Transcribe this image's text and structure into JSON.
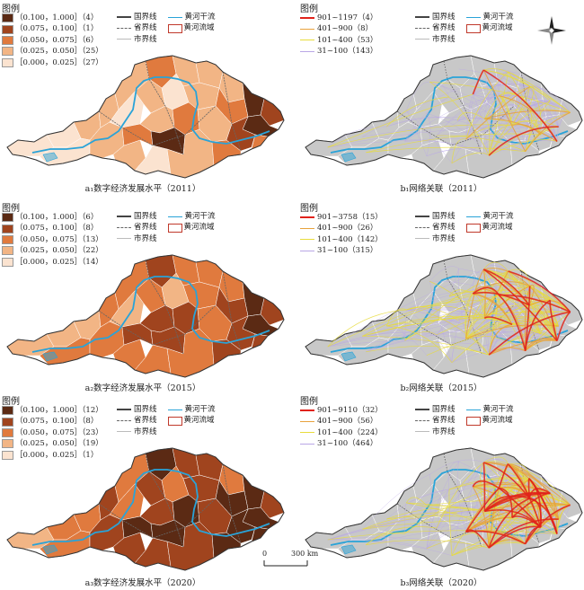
{
  "legend_title": "图例",
  "boundary_legend": {
    "national": "国界线",
    "provincial": "省界线",
    "city": "市界线",
    "river": "黄河干流",
    "basin": "黄河流域"
  },
  "colors": {
    "class5": "#5b2a14",
    "class4": "#a0441e",
    "class3": "#e07a3e",
    "class2": "#f2b585",
    "class1": "#fbe3d0",
    "river": "#29a3d8",
    "basin_line": "#c0392b",
    "base_gray": "#c8c8c8",
    "link_red": "#e0221a",
    "link_orange": "#e8a23c",
    "link_yellow": "#e8dc3c",
    "link_purple": "#b9a7e6"
  },
  "panels": [
    {
      "id": "a1",
      "caption": "a₁数字经济发展水平（2011）",
      "kind": "level",
      "classes": [
        {
          "label": "（0.100，1.000］（4）",
          "color": "#5b2a14",
          "count": 4
        },
        {
          "label": "（0.075，0.100］（1）",
          "color": "#a0441e",
          "count": 1
        },
        {
          "label": "（0.050，0.075］（6）",
          "color": "#e07a3e",
          "count": 6
        },
        {
          "label": "（0.025，0.050］（25）",
          "color": "#f2b585",
          "count": 25
        },
        {
          "label": "［0.000，0.025］（27）",
          "color": "#fbe3d0",
          "count": 27
        }
      ]
    },
    {
      "id": "b1",
      "caption": "b₁网络关联（2011）",
      "kind": "network",
      "links": [
        {
          "label": "901~1197（4）",
          "color": "#e0221a",
          "count": 4
        },
        {
          "label": "401~900（8）",
          "color": "#e8a23c",
          "count": 8
        },
        {
          "label": "101~400（53）",
          "color": "#e8dc3c",
          "count": 53
        },
        {
          "label": "31~100（143）",
          "color": "#b9a7e6",
          "count": 143
        }
      ]
    },
    {
      "id": "a2",
      "caption": "a₂数字经济发展水平（2015）",
      "kind": "level",
      "classes": [
        {
          "label": "（0.100，1.000］（6）",
          "color": "#5b2a14",
          "count": 6
        },
        {
          "label": "（0.075，0.100］（8）",
          "color": "#a0441e",
          "count": 8
        },
        {
          "label": "（0.050，0.075］（13）",
          "color": "#e07a3e",
          "count": 13
        },
        {
          "label": "（0.025，0.050］（22）",
          "color": "#f2b585",
          "count": 22
        },
        {
          "label": "［0.000，0.025］（14）",
          "color": "#fbe3d0",
          "count": 14
        }
      ]
    },
    {
      "id": "b2",
      "caption": "b₂网络关联（2015）",
      "kind": "network",
      "links": [
        {
          "label": "901~3758（15）",
          "color": "#e0221a",
          "count": 15
        },
        {
          "label": "401~900（26）",
          "color": "#e8a23c",
          "count": 26
        },
        {
          "label": "101~400（142）",
          "color": "#e8dc3c",
          "count": 142
        },
        {
          "label": "31~100（315）",
          "color": "#b9a7e6",
          "count": 315
        }
      ]
    },
    {
      "id": "a3",
      "caption": "a₃数字经济发展水平（2020）",
      "kind": "level",
      "classes": [
        {
          "label": "（0.100，1.000］（12）",
          "color": "#5b2a14",
          "count": 12
        },
        {
          "label": "（0.075，0.100］（8）",
          "color": "#a0441e",
          "count": 8
        },
        {
          "label": "（0.050，0.075］（23）",
          "color": "#e07a3e",
          "count": 23
        },
        {
          "label": "（0.025，0.050］（19）",
          "color": "#f2b585",
          "count": 19
        },
        {
          "label": "［0.000，0.025］（1）",
          "color": "#fbe3d0",
          "count": 1
        }
      ]
    },
    {
      "id": "b3",
      "caption": "b₃网络关联（2020）",
      "kind": "network",
      "links": [
        {
          "label": "901~9110（32）",
          "color": "#e0221a",
          "count": 32
        },
        {
          "label": "401~900（56）",
          "color": "#e8a23c",
          "count": 56
        },
        {
          "label": "101~400（224）",
          "color": "#e8dc3c",
          "count": 224
        },
        {
          "label": "31~100（464）",
          "color": "#b9a7e6",
          "count": 464
        }
      ]
    }
  ],
  "scale_bar": {
    "zero": "0",
    "length": "300 km"
  }
}
